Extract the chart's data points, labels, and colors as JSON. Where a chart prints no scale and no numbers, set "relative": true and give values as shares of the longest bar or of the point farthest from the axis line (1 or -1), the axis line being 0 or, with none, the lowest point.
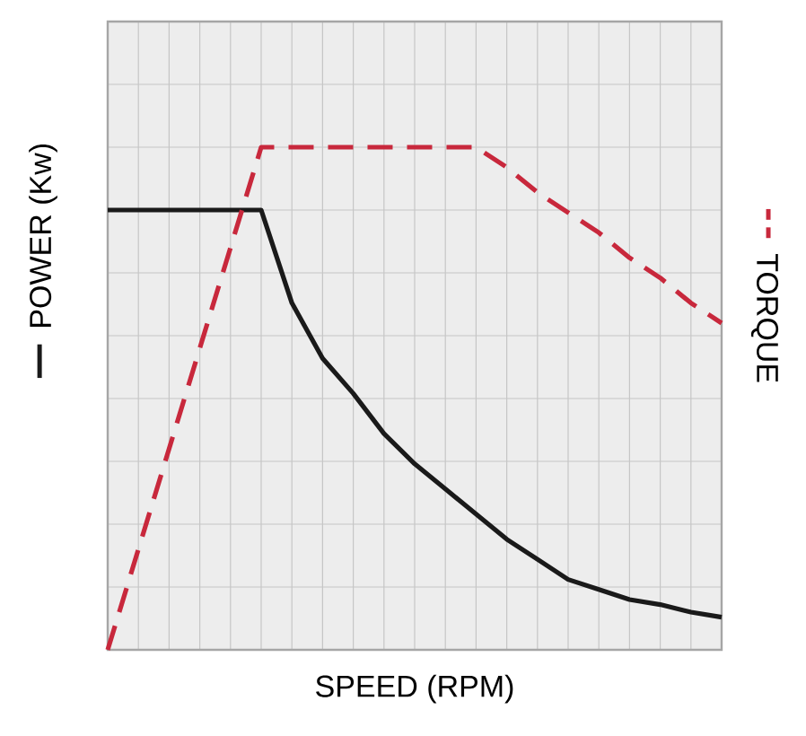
{
  "chart_data": {
    "type": "line",
    "relative": true,
    "xlabel": "SPEED (RPM)",
    "ylabel": "POWER (Kw)",
    "y2label": "TORQUE",
    "grid": true,
    "categories": [
      null,
      null,
      null,
      null,
      null,
      null,
      null,
      null,
      null,
      null,
      null,
      null,
      null,
      null,
      null,
      null,
      null,
      null,
      null,
      null,
      null
    ],
    "series": [
      {
        "color": "#1a1a1a",
        "line_style": "solid",
        "values": [
          0.875,
          0.875,
          0.875,
          0.875,
          0.875,
          0.875,
          0.69,
          0.58,
          0.51,
          0.43,
          0.37,
          0.32,
          0.27,
          0.22,
          0.18,
          0.14,
          0.12,
          0.1,
          0.09,
          0.075,
          0.065
        ]
      },
      {
        "color": "#c8283c",
        "line_style": "dashed",
        "values": [
          0,
          0.2,
          0.4,
          0.6,
          0.8,
          1.0,
          1.0,
          1.0,
          1.0,
          1.0,
          1.0,
          1.0,
          1.0,
          0.96,
          0.91,
          0.87,
          0.83,
          0.78,
          0.74,
          0.69,
          0.65
        ]
      }
    ]
  }
}
